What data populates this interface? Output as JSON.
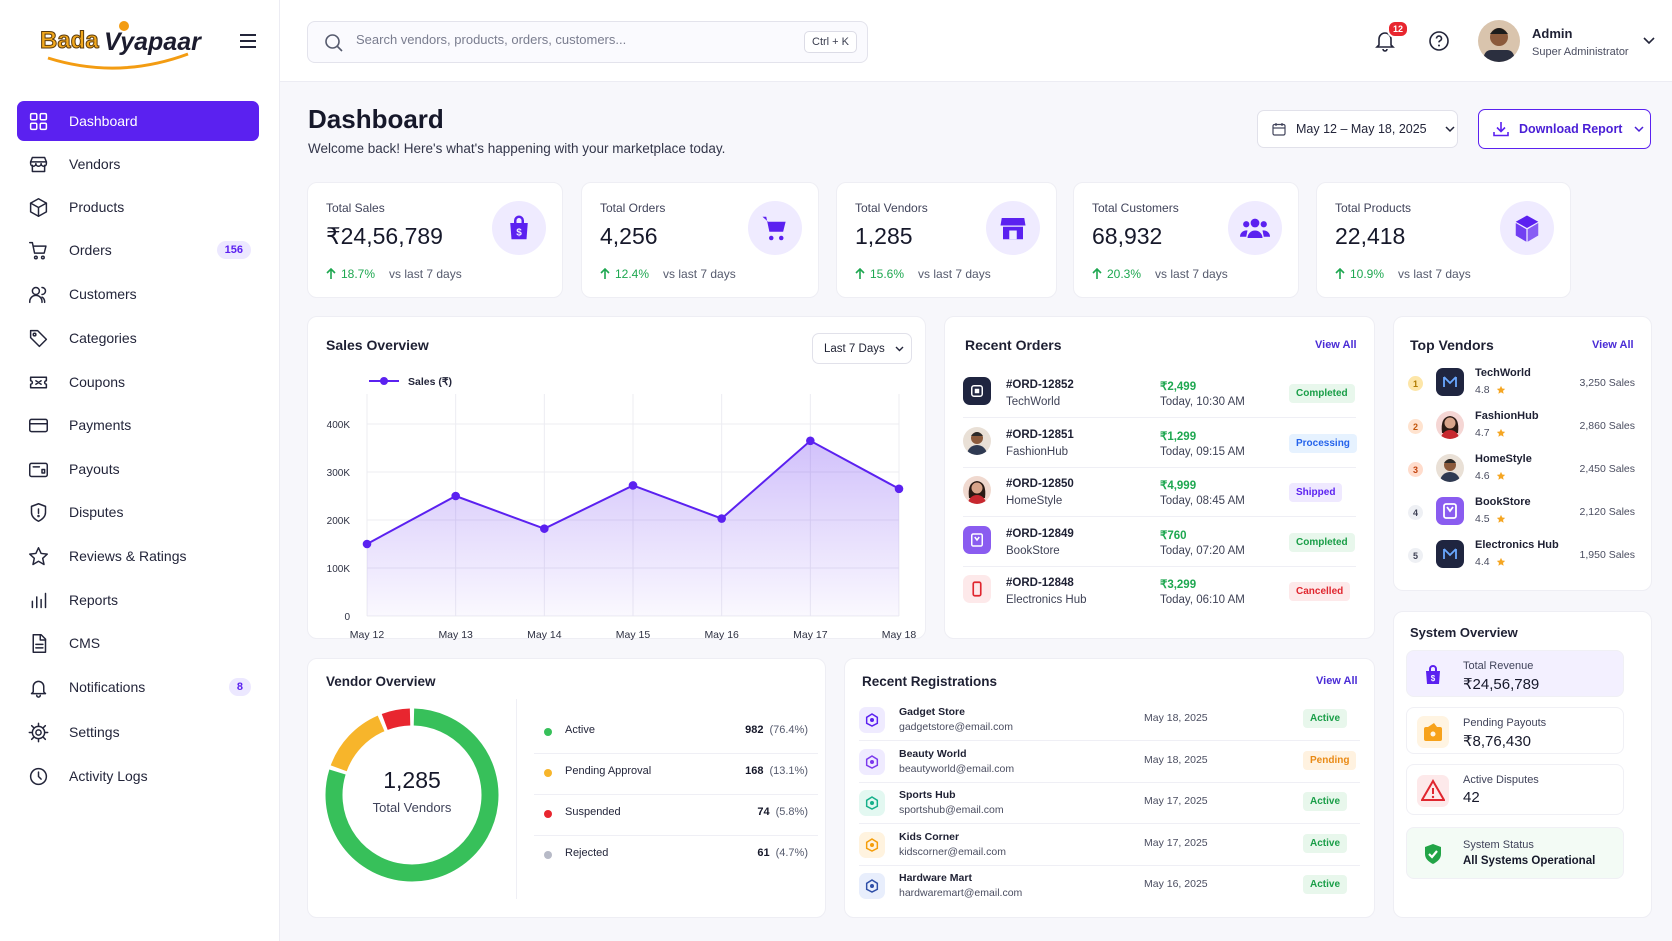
{
  "brand": {
    "name_part1": "Bada",
    "name_part2": "Vyapaar"
  },
  "sidebar": {
    "items": [
      {
        "label": "Dashboard",
        "icon": "dashboard-grid-icon",
        "active": true
      },
      {
        "label": "Vendors",
        "icon": "store-icon"
      },
      {
        "label": "Products",
        "icon": "box-icon"
      },
      {
        "label": "Orders",
        "icon": "cart-icon",
        "count": "156"
      },
      {
        "label": "Customers",
        "icon": "users-icon"
      },
      {
        "label": "Categories",
        "icon": "tag-icon"
      },
      {
        "label": "Coupons",
        "icon": "ticket-icon"
      },
      {
        "label": "Payments",
        "icon": "credit-card-icon"
      },
      {
        "label": "Payouts",
        "icon": "wallet-icon"
      },
      {
        "label": "Disputes",
        "icon": "shield-alert-icon"
      },
      {
        "label": "Reviews & Ratings",
        "icon": "star-icon"
      },
      {
        "label": "Reports",
        "icon": "bar-chart-icon"
      },
      {
        "label": "CMS",
        "icon": "document-icon"
      },
      {
        "label": "Notifications",
        "icon": "bell-icon",
        "count": "8"
      },
      {
        "label": "Settings",
        "icon": "gear-icon"
      },
      {
        "label": "Activity Logs",
        "icon": "clock-icon"
      }
    ]
  },
  "topbar": {
    "search_placeholder": "Search vendors, products, orders, customers...",
    "shortcut": "Ctrl + K",
    "notification_count": "12",
    "user_name": "Admin",
    "user_role": "Super Administrator"
  },
  "header": {
    "title": "Dashboard",
    "subtitle": "Welcome back! Here's what's happening with your marketplace today.",
    "date_range": "May 12 – May 18, 2025",
    "download_label": "Download Report"
  },
  "stats": [
    {
      "title": "Total Sales",
      "value": "₹24,56,789",
      "change": "18.7%",
      "period": "vs last 7 days",
      "icon": "shopping-bag-icon"
    },
    {
      "title": "Total Orders",
      "value": "4,256",
      "change": "12.4%",
      "period": "vs last 7 days",
      "icon": "cart-icon"
    },
    {
      "title": "Total Vendors",
      "value": "1,285",
      "change": "15.6%",
      "period": "vs last 7 days",
      "icon": "store-icon"
    },
    {
      "title": "Total Customers",
      "value": "68,932",
      "change": "20.3%",
      "period": "vs last 7 days",
      "icon": "users-icon"
    },
    {
      "title": "Total Products",
      "value": "22,418",
      "change": "10.9%",
      "period": "vs last 7 days",
      "icon": "cube-icon"
    }
  ],
  "sales_overview": {
    "title": "Sales Overview",
    "range": "Last 7 Days"
  },
  "chart_data": {
    "type": "area",
    "categories": [
      "May 12",
      "May 13",
      "May 14",
      "May 15",
      "May 16",
      "May 17",
      "May 18"
    ],
    "series": [
      {
        "name": "Sales (₹)",
        "values": [
          150000,
          250000,
          182000,
          272000,
          203000,
          365000,
          265000
        ]
      }
    ],
    "y_ticks": [
      "0",
      "100K",
      "200K",
      "300K",
      "400K"
    ],
    "ylim": [
      0,
      400000
    ],
    "grid": true,
    "legend": "top-left",
    "color": "#5b21f0"
  },
  "recent_orders": {
    "title": "Recent Orders",
    "view_all": "View All",
    "items": [
      {
        "id": "#ORD-12852",
        "vendor": "TechWorld",
        "amount": "₹2,499",
        "time": "Today, 10:30 AM",
        "status": "Completed",
        "status_type": "green"
      },
      {
        "id": "#ORD-12851",
        "vendor": "FashionHub",
        "amount": "₹1,299",
        "time": "Today, 09:15 AM",
        "status": "Processing",
        "status_type": "blue"
      },
      {
        "id": "#ORD-12850",
        "vendor": "HomeStyle",
        "amount": "₹4,999",
        "time": "Today, 08:45 AM",
        "status": "Shipped",
        "status_type": "purple"
      },
      {
        "id": "#ORD-12849",
        "vendor": "BookStore",
        "amount": "₹760",
        "time": "Today, 07:20 AM",
        "status": "Completed",
        "status_type": "green"
      },
      {
        "id": "#ORD-12848",
        "vendor": "Electronics Hub",
        "amount": "₹3,299",
        "time": "Today, 06:10 AM",
        "status": "Cancelled",
        "status_type": "red"
      }
    ]
  },
  "top_vendors": {
    "title": "Top Vendors",
    "view_all": "View All",
    "items": [
      {
        "rank": "1",
        "name": "TechWorld",
        "rating": "4.8",
        "sales": "3,250 Sales"
      },
      {
        "rank": "2",
        "name": "FashionHub",
        "rating": "4.7",
        "sales": "2,860 Sales"
      },
      {
        "rank": "3",
        "name": "HomeStyle",
        "rating": "4.6",
        "sales": "2,450 Sales"
      },
      {
        "rank": "4",
        "name": "BookStore",
        "rating": "4.5",
        "sales": "2,120 Sales"
      },
      {
        "rank": "5",
        "name": "Electronics Hub",
        "rating": "4.4",
        "sales": "1,950 Sales"
      }
    ]
  },
  "vendor_overview": {
    "title": "Vendor Overview",
    "total": "1,285",
    "total_label": "Total Vendors",
    "items": [
      {
        "label": "Active",
        "count": "982",
        "pct": "(76.4%)",
        "value": 76.4,
        "color": "#37c05a"
      },
      {
        "label": "Pending Approval",
        "count": "168",
        "pct": "(13.1%)",
        "value": 13.1,
        "color": "#f7b52b"
      },
      {
        "label": "Suspended",
        "count": "74",
        "pct": "(5.8%)",
        "value": 5.8,
        "color": "#e8262f"
      },
      {
        "label": "Rejected",
        "count": "61",
        "pct": "(4.7%)",
        "value": 4.7,
        "color": "#b7bac7"
      }
    ]
  },
  "recent_registrations": {
    "title": "Recent Registrations",
    "view_all": "View All",
    "items": [
      {
        "name": "Gadget Store",
        "email": "gadgetstore@email.com",
        "date": "May 18, 2025",
        "status": "Active",
        "status_type": "green"
      },
      {
        "name": "Beauty World",
        "email": "beautyworld@email.com",
        "date": "May 18, 2025",
        "status": "Pending",
        "status_type": "orange"
      },
      {
        "name": "Sports Hub",
        "email": "sportshub@email.com",
        "date": "May 17, 2025",
        "status": "Active",
        "status_type": "green"
      },
      {
        "name": "Kids Corner",
        "email": "kidscorner@email.com",
        "date": "May 17, 2025",
        "status": "Active",
        "status_type": "green"
      },
      {
        "name": "Hardware Mart",
        "email": "hardwaremart@email.com",
        "date": "May 16, 2025",
        "status": "Active",
        "status_type": "green"
      }
    ]
  },
  "system_overview": {
    "title": "System Overview",
    "items": [
      {
        "label": "Total Revenue",
        "value": "₹24,56,789",
        "icon": "shopping-bag-icon"
      },
      {
        "label": "Pending Payouts",
        "value": "₹8,76,430",
        "icon": "wallet-icon"
      },
      {
        "label": "Active Disputes",
        "value": "42",
        "icon": "warning-icon"
      },
      {
        "label": "System Status",
        "value": "All Systems Operational",
        "icon": "shield-check-icon"
      }
    ]
  }
}
